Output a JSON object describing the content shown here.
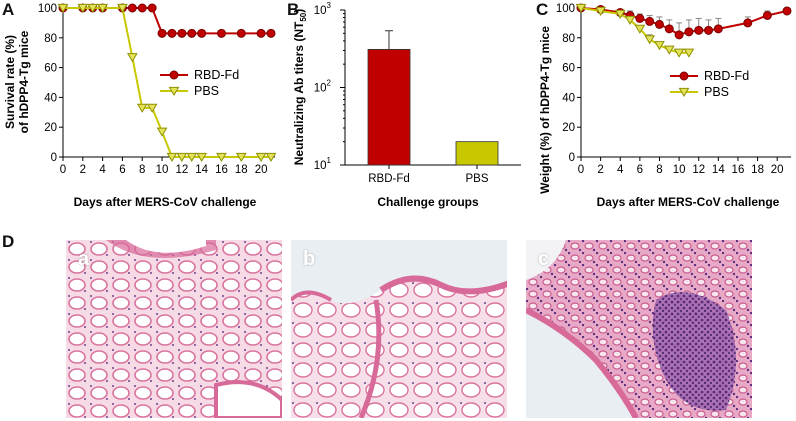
{
  "panels": {
    "A": "A",
    "B": "B",
    "C": "C",
    "D": "D"
  },
  "colors": {
    "rbd": "#c00000",
    "rbd_dark": "#7a0000",
    "pbs": "#c8c800",
    "pbs_fill": "#e3e35a",
    "bar_rbd": "#c00000",
    "bar_pbs": "#c8c800",
    "tissue_bg": "#f3d7e3",
    "tissue_pink": "#d76a98",
    "tissue_purple": "#6f3f8c"
  },
  "chart_data": [
    {
      "panel": "A",
      "type": "line",
      "xlabel": "Days after MERS-CoV challenge",
      "ylabel_line1": "Survival rate (%)",
      "ylabel_line2": "of hDPP4-Tg mice",
      "xlim": [
        0,
        21
      ],
      "ylim": [
        0,
        100
      ],
      "xticks": [
        0,
        2,
        4,
        6,
        8,
        10,
        12,
        14,
        16,
        18,
        20
      ],
      "yticks": [
        0,
        20,
        40,
        60,
        80,
        100
      ],
      "legend_placement": "middle-right",
      "series": [
        {
          "name": "RBD-Fd",
          "marker": "circle",
          "x": [
            0,
            2,
            3,
            4,
            6,
            7,
            8,
            9,
            10,
            11,
            12,
            13,
            14,
            16,
            18,
            20,
            21
          ],
          "y": [
            100,
            100,
            100,
            100,
            100,
            100,
            100,
            100,
            83,
            83,
            83,
            83,
            83,
            83,
            83,
            83,
            83
          ]
        },
        {
          "name": "PBS",
          "marker": "triangle-down",
          "x": [
            0,
            2,
            3,
            4,
            6,
            7,
            8,
            9,
            10,
            11,
            12,
            13,
            14,
            16,
            18,
            20,
            21
          ],
          "y": [
            100,
            100,
            100,
            100,
            100,
            67,
            33,
            33,
            17,
            0,
            0,
            0,
            0,
            0,
            0,
            0,
            0
          ]
        }
      ]
    },
    {
      "panel": "B",
      "type": "bar",
      "xlabel": "Challenge groups",
      "ylabel_main": "Neutralizing Ab titers (NT",
      "ylabel_sub": "50",
      "ylabel_end": ")",
      "yscale": "log",
      "ylim": [
        10,
        1000
      ],
      "yticks": [
        {
          "value": 10,
          "base": "10",
          "exp": "1"
        },
        {
          "value": 100,
          "base": "10",
          "exp": "2"
        },
        {
          "value": 1000,
          "base": "10",
          "exp": "3"
        }
      ],
      "categories": [
        "RBD-Fd",
        "PBS"
      ],
      "values": [
        310,
        20
      ],
      "error_upper": [
        540,
        null
      ]
    },
    {
      "panel": "C",
      "type": "line",
      "xlabel": "Days after MERS-CoV challenge",
      "ylabel": "Weight (%) of hDPP4-Tg mice",
      "xlim": [
        0,
        21
      ],
      "ylim": [
        0,
        100
      ],
      "xticks": [
        0,
        2,
        4,
        6,
        8,
        10,
        12,
        14,
        16,
        18,
        20
      ],
      "yticks": [
        0,
        20,
        40,
        60,
        80,
        100
      ],
      "legend_placement": "middle-right",
      "series": [
        {
          "name": "RBD-Fd",
          "marker": "circle",
          "x": [
            0,
            2,
            4,
            5,
            6,
            7,
            8,
            9,
            10,
            11,
            12,
            13,
            14,
            17,
            19,
            21
          ],
          "y": [
            100,
            99,
            97,
            95,
            93,
            91,
            89,
            86,
            82,
            84,
            85,
            85,
            86,
            90,
            95,
            98
          ],
          "err": [
            0,
            1,
            2,
            3,
            3,
            4,
            5,
            6,
            8,
            8,
            8,
            7,
            7,
            4,
            3,
            2
          ]
        },
        {
          "name": "PBS",
          "marker": "triangle-down",
          "x": [
            0,
            2,
            4,
            5,
            6,
            7,
            8,
            9,
            10,
            11
          ],
          "y": [
            100,
            98,
            96,
            92,
            86,
            79,
            75,
            72,
            70,
            70
          ],
          "err": [
            0,
            1,
            1,
            2,
            2,
            3,
            2,
            2,
            1,
            1
          ]
        }
      ]
    }
  ],
  "micrographs": {
    "a": "a",
    "b": "b",
    "c": "c"
  }
}
